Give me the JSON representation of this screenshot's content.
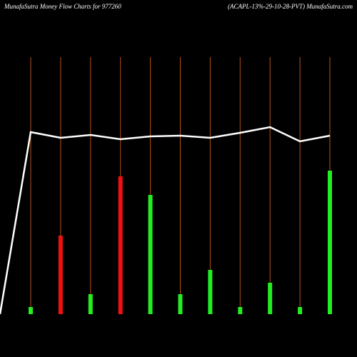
{
  "chart_data": {
    "type": "bar",
    "title": "MunafaSutra  Money Flow  Charts for 977260",
    "subtitle": "(ACAPL-13%-29-10-28-PVT) MunafaSutra.com",
    "ylim": [
      0,
      440
    ],
    "bars": {
      "values": [
        10,
        110,
        28,
        193,
        167,
        28,
        62,
        10,
        44,
        10,
        201
      ],
      "colors": [
        "#22ee22",
        "#ee1111",
        "#22ee22",
        "#ee1111",
        "#22ee22",
        "#22ee22",
        "#22ee22",
        "#22ee22",
        "#22ee22",
        "#22ee22",
        "#22ee22"
      ]
    },
    "line": {
      "color": "#ffffff",
      "values": [
        0,
        255,
        247,
        251,
        245,
        249,
        250,
        247,
        254,
        262,
        242,
        250
      ]
    },
    "guide_color": "#b5531a"
  }
}
